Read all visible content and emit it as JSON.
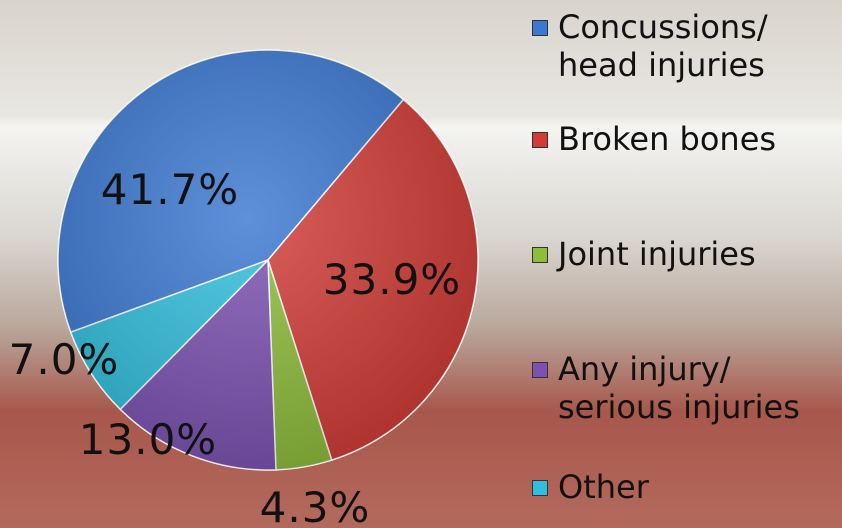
{
  "chart_data": {
    "type": "pie",
    "categories": [
      "Concussions/\nhead injuries",
      "Broken bones",
      "Joint injuries",
      "Any injury/\nserious injuries",
      "Other"
    ],
    "values": [
      41.7,
      33.9,
      4.3,
      13.0,
      7.0
    ],
    "value_labels": [
      "41.7%",
      "33.9%",
      "4.3%",
      "13.0%",
      "7.0%"
    ],
    "colors": [
      "#3b78d2",
      "#d23b36",
      "#8dbd3a",
      "#7b52b2",
      "#30bfdc"
    ]
  }
}
